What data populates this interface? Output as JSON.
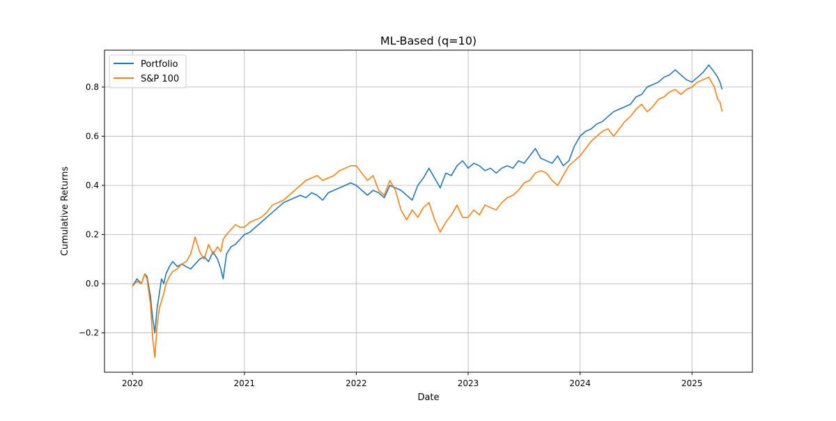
{
  "chart_data": {
    "type": "line",
    "title": "ML-Based (q=10)",
    "xlabel": "Date",
    "ylabel": "Cumulative Returns",
    "x_range": [
      2019.75,
      2025.54
    ],
    "ylim": [
      -0.36,
      0.95
    ],
    "grid": true,
    "legend_position": "top-left",
    "x_ticks": [
      {
        "value": 2020,
        "label": "2020"
      },
      {
        "value": 2021,
        "label": "2021"
      },
      {
        "value": 2022,
        "label": "2022"
      },
      {
        "value": 2023,
        "label": "2023"
      },
      {
        "value": 2024,
        "label": "2024"
      },
      {
        "value": 2025,
        "label": "2025"
      }
    ],
    "y_ticks": [
      {
        "value": -0.2,
        "label": "−0.2"
      },
      {
        "value": 0.0,
        "label": "0.0"
      },
      {
        "value": 0.2,
        "label": "0.2"
      },
      {
        "value": 0.4,
        "label": "0.4"
      },
      {
        "value": 0.6,
        "label": "0.6"
      },
      {
        "value": 0.8,
        "label": "0.8"
      }
    ],
    "series": [
      {
        "name": "Portfolio",
        "color": "#1f77b4",
        "x": [
          2020.0,
          2020.04,
          2020.08,
          2020.11,
          2020.13,
          2020.16,
          2020.18,
          2020.2,
          2020.22,
          2020.24,
          2020.26,
          2020.28,
          2020.3,
          2020.33,
          2020.36,
          2020.4,
          2020.44,
          2020.48,
          2020.52,
          2020.56,
          2020.6,
          2020.64,
          2020.68,
          2020.72,
          2020.76,
          2020.79,
          2020.81,
          2020.84,
          2020.88,
          2020.92,
          2020.96,
          2021.0,
          2021.05,
          2021.1,
          2021.15,
          2021.2,
          2021.25,
          2021.3,
          2021.35,
          2021.4,
          2021.45,
          2021.5,
          2021.55,
          2021.6,
          2021.65,
          2021.7,
          2021.75,
          2021.8,
          2021.85,
          2021.9,
          2021.95,
          2022.0,
          2022.05,
          2022.1,
          2022.15,
          2022.2,
          2022.25,
          2022.3,
          2022.35,
          2022.4,
          2022.45,
          2022.5,
          2022.55,
          2022.6,
          2022.65,
          2022.7,
          2022.75,
          2022.8,
          2022.85,
          2022.9,
          2022.95,
          2023.0,
          2023.05,
          2023.1,
          2023.15,
          2023.2,
          2023.25,
          2023.3,
          2023.35,
          2023.4,
          2023.45,
          2023.5,
          2023.55,
          2023.6,
          2023.65,
          2023.7,
          2023.75,
          2023.8,
          2023.85,
          2023.9,
          2023.95,
          2024.0,
          2024.05,
          2024.1,
          2024.15,
          2024.2,
          2024.25,
          2024.3,
          2024.35,
          2024.4,
          2024.45,
          2024.5,
          2024.55,
          2024.6,
          2024.65,
          2024.7,
          2024.75,
          2024.8,
          2024.85,
          2024.9,
          2024.95,
          2025.0,
          2025.05,
          2025.1,
          2025.15,
          2025.2,
          2025.23,
          2025.25,
          2025.27
        ],
        "values": [
          -0.01,
          0.02,
          0.0,
          0.04,
          0.03,
          -0.05,
          -0.14,
          -0.2,
          -0.1,
          -0.04,
          0.02,
          0.0,
          0.04,
          0.07,
          0.09,
          0.07,
          0.08,
          0.07,
          0.06,
          0.08,
          0.1,
          0.11,
          0.09,
          0.13,
          0.1,
          0.06,
          0.02,
          0.12,
          0.15,
          0.16,
          0.18,
          0.2,
          0.21,
          0.23,
          0.25,
          0.27,
          0.29,
          0.31,
          0.33,
          0.34,
          0.35,
          0.36,
          0.35,
          0.37,
          0.36,
          0.34,
          0.37,
          0.38,
          0.39,
          0.4,
          0.41,
          0.4,
          0.38,
          0.36,
          0.38,
          0.37,
          0.35,
          0.4,
          0.39,
          0.38,
          0.36,
          0.34,
          0.4,
          0.43,
          0.47,
          0.43,
          0.39,
          0.45,
          0.44,
          0.48,
          0.5,
          0.47,
          0.49,
          0.48,
          0.46,
          0.47,
          0.45,
          0.47,
          0.48,
          0.47,
          0.5,
          0.49,
          0.52,
          0.55,
          0.51,
          0.5,
          0.49,
          0.52,
          0.48,
          0.5,
          0.56,
          0.6,
          0.62,
          0.63,
          0.65,
          0.66,
          0.68,
          0.7,
          0.71,
          0.72,
          0.73,
          0.76,
          0.77,
          0.8,
          0.81,
          0.82,
          0.84,
          0.85,
          0.87,
          0.85,
          0.83,
          0.82,
          0.84,
          0.86,
          0.89,
          0.86,
          0.84,
          0.82,
          0.79
        ]
      },
      {
        "name": "S&P 100",
        "color": "#ff7f0e",
        "x": [
          2020.0,
          2020.04,
          2020.08,
          2020.11,
          2020.13,
          2020.16,
          2020.18,
          2020.2,
          2020.22,
          2020.24,
          2020.26,
          2020.28,
          2020.3,
          2020.33,
          2020.36,
          2020.4,
          2020.44,
          2020.48,
          2020.52,
          2020.56,
          2020.6,
          2020.64,
          2020.68,
          2020.72,
          2020.76,
          2020.79,
          2020.81,
          2020.84,
          2020.88,
          2020.92,
          2020.96,
          2021.0,
          2021.05,
          2021.1,
          2021.15,
          2021.2,
          2021.25,
          2021.3,
          2021.35,
          2021.4,
          2021.45,
          2021.5,
          2021.55,
          2021.6,
          2021.65,
          2021.7,
          2021.75,
          2021.8,
          2021.85,
          2021.9,
          2021.95,
          2022.0,
          2022.05,
          2022.1,
          2022.15,
          2022.2,
          2022.25,
          2022.3,
          2022.35,
          2022.4,
          2022.45,
          2022.5,
          2022.55,
          2022.6,
          2022.65,
          2022.7,
          2022.75,
          2022.8,
          2022.85,
          2022.9,
          2022.95,
          2023.0,
          2023.05,
          2023.1,
          2023.15,
          2023.2,
          2023.25,
          2023.3,
          2023.35,
          2023.4,
          2023.45,
          2023.5,
          2023.55,
          2023.6,
          2023.65,
          2023.7,
          2023.75,
          2023.8,
          2023.85,
          2023.9,
          2023.95,
          2024.0,
          2024.05,
          2024.1,
          2024.15,
          2024.2,
          2024.25,
          2024.3,
          2024.35,
          2024.4,
          2024.45,
          2024.5,
          2024.55,
          2024.6,
          2024.65,
          2024.7,
          2024.75,
          2024.8,
          2024.85,
          2024.9,
          2024.95,
          2025.0,
          2025.05,
          2025.1,
          2025.15,
          2025.2,
          2025.23,
          2025.25,
          2025.27
        ],
        "values": [
          -0.01,
          0.01,
          0.0,
          0.04,
          0.02,
          -0.08,
          -0.22,
          -0.3,
          -0.17,
          -0.1,
          -0.07,
          -0.04,
          0.0,
          0.03,
          0.05,
          0.06,
          0.08,
          0.09,
          0.12,
          0.19,
          0.13,
          0.1,
          0.16,
          0.12,
          0.15,
          0.13,
          0.18,
          0.2,
          0.22,
          0.24,
          0.23,
          0.23,
          0.25,
          0.26,
          0.27,
          0.29,
          0.32,
          0.33,
          0.34,
          0.36,
          0.38,
          0.4,
          0.42,
          0.43,
          0.44,
          0.42,
          0.43,
          0.44,
          0.46,
          0.47,
          0.48,
          0.48,
          0.45,
          0.42,
          0.44,
          0.38,
          0.36,
          0.42,
          0.38,
          0.3,
          0.26,
          0.3,
          0.27,
          0.31,
          0.33,
          0.26,
          0.21,
          0.25,
          0.28,
          0.32,
          0.27,
          0.27,
          0.3,
          0.28,
          0.32,
          0.31,
          0.3,
          0.33,
          0.35,
          0.36,
          0.38,
          0.41,
          0.42,
          0.45,
          0.46,
          0.45,
          0.42,
          0.4,
          0.44,
          0.48,
          0.5,
          0.52,
          0.55,
          0.58,
          0.6,
          0.62,
          0.63,
          0.6,
          0.63,
          0.66,
          0.68,
          0.71,
          0.73,
          0.7,
          0.72,
          0.75,
          0.76,
          0.78,
          0.79,
          0.77,
          0.79,
          0.8,
          0.82,
          0.83,
          0.84,
          0.8,
          0.75,
          0.74,
          0.7
        ]
      }
    ]
  }
}
